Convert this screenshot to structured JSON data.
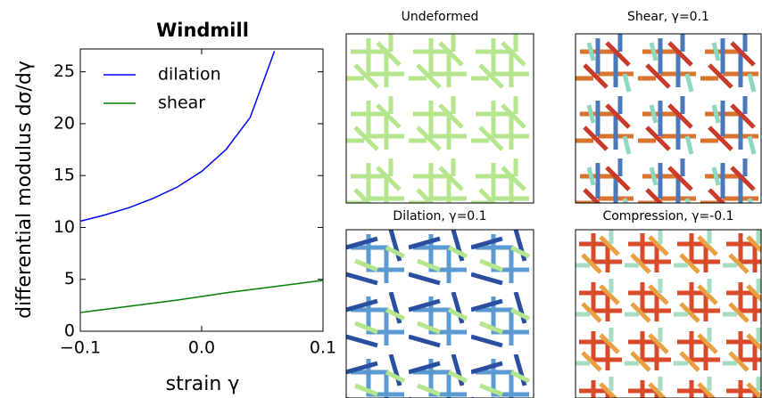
{
  "chart_data": {
    "type": "line",
    "title": "Windmill",
    "x_label": "strain γ",
    "y_label": "differential modulus dσ/dγ",
    "x": [
      -0.1,
      -0.08,
      -0.06,
      -0.04,
      -0.02,
      0,
      0.02,
      0.04,
      0.06,
      0.08,
      0.1
    ],
    "series": [
      {
        "name": "dilation",
        "color": "#0000ff",
        "values": [
          10.6,
          11.2,
          11.9,
          12.8,
          13.9,
          15.4,
          17.5,
          20.6,
          27.0,
          null,
          null
        ]
      },
      {
        "name": "shear",
        "color": "#008000",
        "values": [
          1.8,
          2.1,
          2.4,
          2.7,
          3.0,
          3.35,
          3.7,
          4.0,
          4.3,
          4.6,
          4.9
        ]
      }
    ],
    "xlim": [
      -0.1,
      0.1
    ],
    "ylim": [
      0,
      27.2
    ],
    "xticks": [
      {
        "value": -0.1,
        "label": "−0.1"
      },
      {
        "value": 0,
        "label": "0.0"
      },
      0.1
    ],
    "yticks": [
      0,
      5,
      10,
      15,
      20,
      25
    ],
    "legend": "upper left",
    "grid": false
  },
  "panels": [
    {
      "title": "Undeformed"
    },
    {
      "title": "Shear, γ=0.1"
    },
    {
      "title": "Dilation, γ=0.1"
    },
    {
      "title": "Compression, γ=-0.1"
    }
  ]
}
